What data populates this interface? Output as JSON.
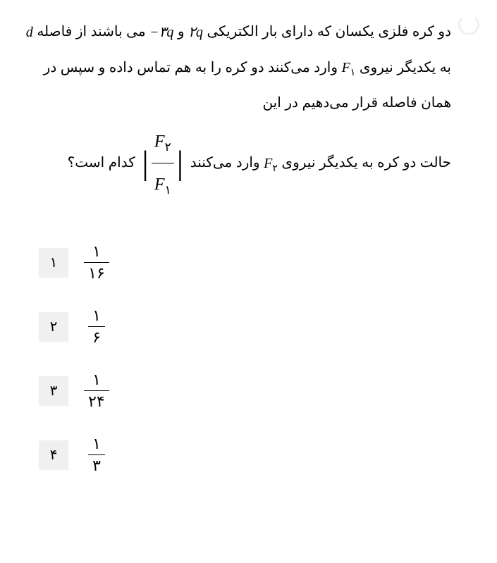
{
  "question": {
    "line1_part1": "دو کره فلزی یکسان که دارای بار الکتریکی ",
    "charge1_coeff": "۲",
    "charge_sym": "q",
    "line1_and": " و ",
    "charge2_coeff": "۳",
    "charge2_sign": "−",
    "line1_part2": " می",
    "line2_part1": "باشند از فاصله ",
    "dist_sym": "d",
    "line2_part2": " به یکدیگر نیروی ",
    "f1_sym": "F",
    "f1_sub": "۱",
    "line2_part3": " وارد می‌کنند دو کره را به",
    "line3": "هم تماس داده و سپس در همان فاصله قرار می‌دهیم در این",
    "line4_part1": "حالت دو کره به یکدیگر نیروی ",
    "f2_sym": "F",
    "f2_sub": "۲",
    "line4_part2": " وارد می‌کنند ",
    "frac_num_sym": "F",
    "frac_num_sub": "۲",
    "frac_den_sym": "F",
    "frac_den_sub": "۱",
    "line4_end": " کدام است؟"
  },
  "options": [
    {
      "label": "۱",
      "num": "۱",
      "den": "۱۶"
    },
    {
      "label": "۲",
      "num": "۱",
      "den": "۶"
    },
    {
      "label": "۳",
      "num": "۱",
      "den": "۲۴"
    },
    {
      "label": "۴",
      "num": "۱",
      "den": "۳"
    }
  ],
  "colors": {
    "background": "#ffffff",
    "text": "#000000",
    "option_bg": "#f0f0f0"
  }
}
